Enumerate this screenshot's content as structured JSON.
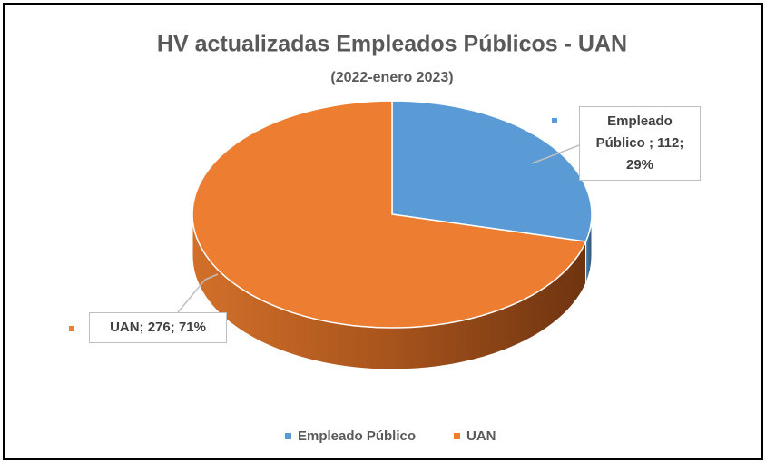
{
  "chart_data": {
    "type": "pie3d",
    "title": "HV actualizadas Empleados Públicos - UAN",
    "subtitle": "(2022-enero 2023)",
    "categories": [
      "Empleado Público",
      "UAN"
    ],
    "values": [
      112,
      276
    ],
    "value_labels": [
      "Empleado Público ; 112; 29%",
      "UAN; 276; 71%"
    ],
    "colors": [
      "#5b9bd5",
      "#ed7d31"
    ],
    "legend": "bottom"
  }
}
